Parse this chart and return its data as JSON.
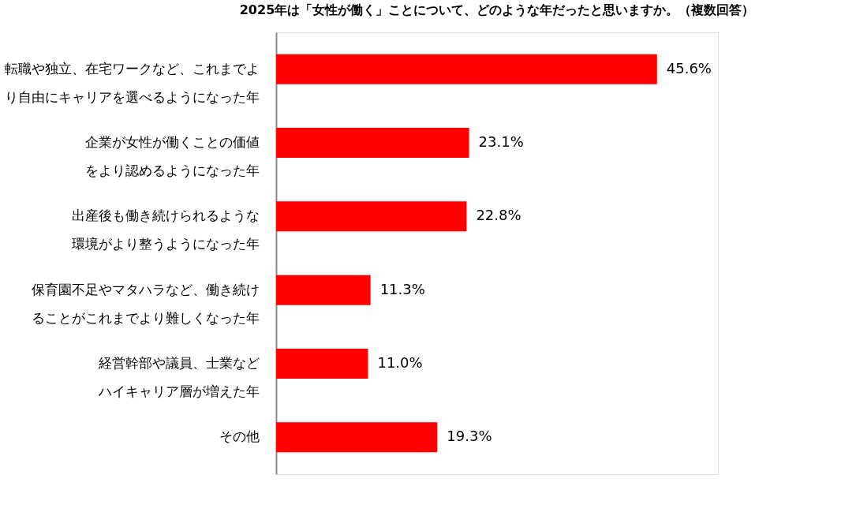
{
  "chart_data": {
    "type": "bar",
    "orientation": "horizontal",
    "title": "2025年は「女性が働く」ことについて、どのような年だったと思いますか。（複数回答）",
    "categories": [
      "転職や独立、在宅ワークなど、これまでより自由にキャリアを選べるようになった年",
      "企業が女性が働くことの価値をより認めるようになった年",
      "出産後も働き続けられるような環境がより整うようになった年",
      "保育園不足やマタハラなど、働き続けることがこれまでより難しくなった年",
      "経営幹部や議員、士業などハイキャリア層が増えた年",
      "その他"
    ],
    "values": [
      45.6,
      23.1,
      22.8,
      11.3,
      11.0,
      19.3
    ],
    "value_labels": [
      "45.6%",
      "23.1%",
      "22.8%",
      "11.3%",
      "11.0%",
      "19.3%"
    ],
    "color": "#ff0000",
    "grid": false
  }
}
